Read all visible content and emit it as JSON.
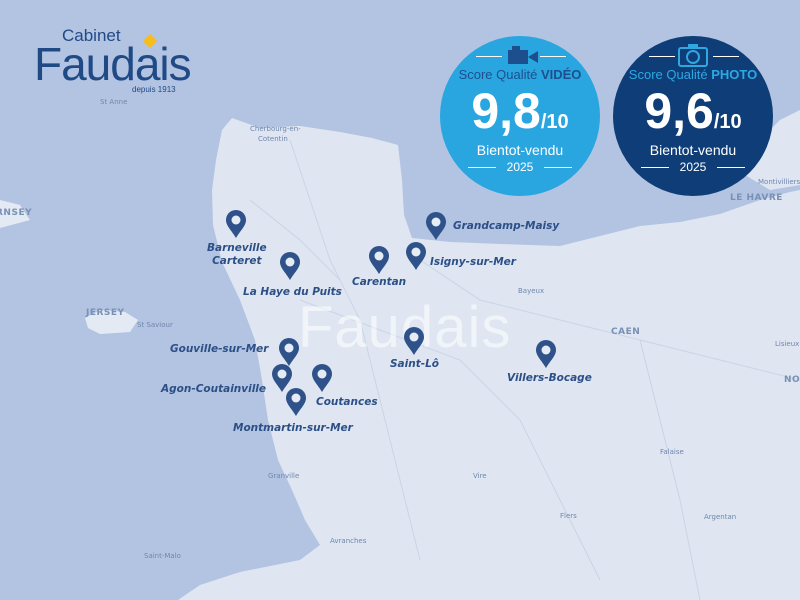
{
  "logo": {
    "top": "Cabinet",
    "name": "Faudais",
    "since": "depuis 1913"
  },
  "watermark": "Faudais",
  "badges": [
    {
      "title_prefix": "Score Qualité",
      "title_strong": "VIDÉO",
      "score": "9,8",
      "scale": "/10",
      "subtitle": "Bientot-vendu",
      "year": "2025",
      "icon": "video-camera-icon",
      "color": "#29a6e0",
      "title_color": "#1d4f8e"
    },
    {
      "title_prefix": "Score Qualité",
      "title_strong": "PHOTO",
      "score": "9,6",
      "scale": "/10",
      "subtitle": "Bientot-vendu",
      "year": "2025",
      "icon": "photo-camera-icon",
      "color": "#0e3d78",
      "title_color": "#2fa8e2"
    }
  ],
  "places": [
    "Barneville",
    "Carteret",
    "La Haye du Puits",
    "Carentan",
    "Isigny-sur-Mer",
    "Grandcamp-Maisy",
    "Saint-Lô",
    "Villers-Bocage",
    "Gouville-sur-Mer",
    "Agon-Coutainville",
    "Coutances",
    "Montmartin-sur-Mer"
  ],
  "map_labels": {
    "st_anne": "St Anne",
    "cherbourg1": "Cherbourg-en-",
    "cherbourg2": "Cotentin",
    "guernsey": "RNSEY",
    "jersey": "JERSEY",
    "st_saviour": "St Saviour",
    "bayeux": "Bayeux",
    "caen": "CAEN",
    "lisieux": "Lisieux",
    "nor": "NOR",
    "falaise": "Falaise",
    "vire": "Vire",
    "flers": "Flers",
    "argentan": "Argentan",
    "granville": "Granville",
    "avranches": "Avranches",
    "saint_malo": "Saint-Malo",
    "le_havre": "LE HAVRE",
    "montivilliers": "Montivilliers"
  },
  "colors": {
    "sea": "#b2c4e2",
    "land": "#dfe6f2",
    "pin": "#2e5289"
  }
}
